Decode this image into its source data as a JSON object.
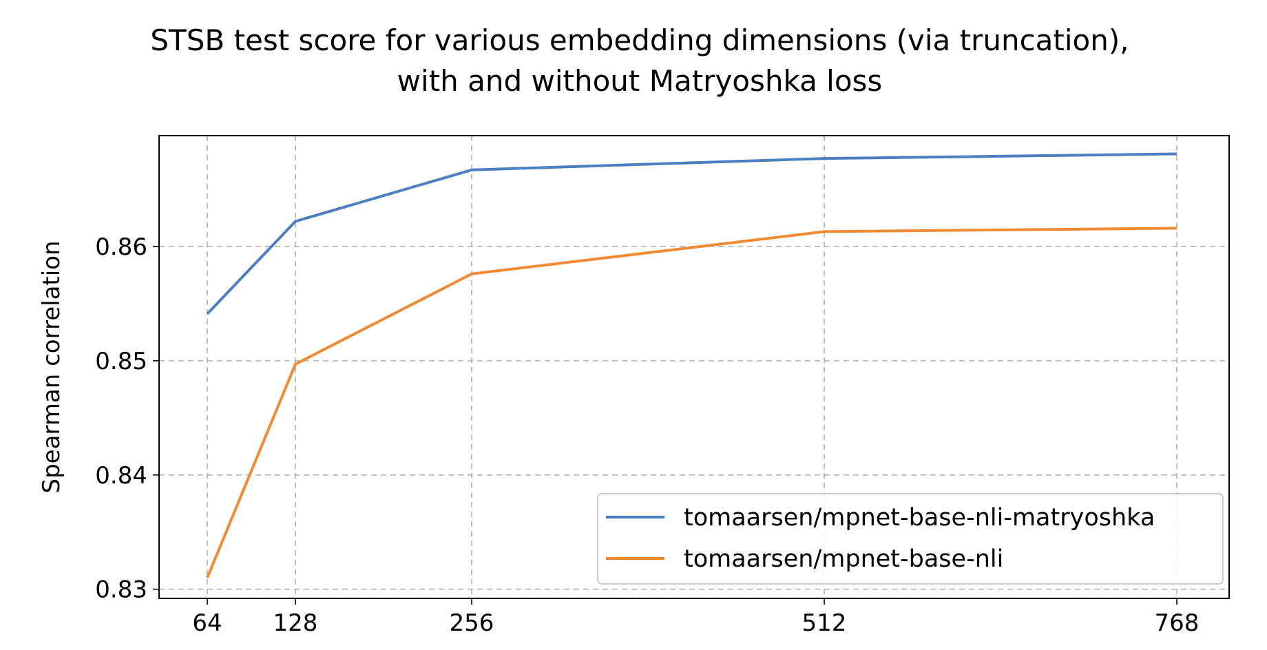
{
  "chart_data": {
    "type": "line",
    "title": [
      "STSB test score for various embedding dimensions (via truncation),",
      "with and without Matryoshka loss"
    ],
    "xlabel": "",
    "ylabel": "Spearman correlation",
    "x": [
      64,
      128,
      256,
      512,
      768
    ],
    "x_tick_labels": [
      "64",
      "128",
      "256",
      "512",
      "768"
    ],
    "y_ticks": [
      0.83,
      0.84,
      0.85,
      0.86
    ],
    "y_tick_labels": [
      "0.83",
      "0.84",
      "0.85",
      "0.86"
    ],
    "xlim": [
      29,
      806
    ],
    "ylim": [
      0.8292,
      0.8697
    ],
    "grid": true,
    "legend_position": "lower-right",
    "series": [
      {
        "name": "tomaarsen/mpnet-base-nli-matryoshka",
        "color": "#4c7fc0",
        "values": [
          0.8541,
          0.8622,
          0.8667,
          0.8677,
          0.8681
        ]
      },
      {
        "name": "tomaarsen/mpnet-base-nli",
        "color": "#f08a33",
        "values": [
          0.831,
          0.8497,
          0.8576,
          0.8613,
          0.8616
        ]
      }
    ]
  }
}
